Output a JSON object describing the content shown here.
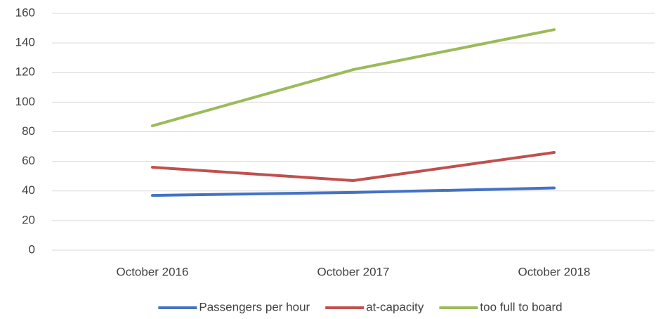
{
  "chart_data": {
    "type": "line",
    "categories": [
      "October 2016",
      "October 2017",
      "October 2018"
    ],
    "series": [
      {
        "name": "Passengers per hour",
        "color": "#4472c4",
        "values": [
          37,
          39,
          42
        ]
      },
      {
        "name": "at-capacity",
        "color": "#c0504d",
        "values": [
          56,
          47,
          66
        ]
      },
      {
        "name": "too full to board",
        "color": "#9bbb59",
        "values": [
          84,
          122,
          149
        ]
      }
    ],
    "ylim": [
      0,
      160
    ],
    "yticks": [
      0,
      20,
      40,
      60,
      80,
      100,
      120,
      140,
      160
    ],
    "grid": true,
    "legend": "bottom"
  }
}
